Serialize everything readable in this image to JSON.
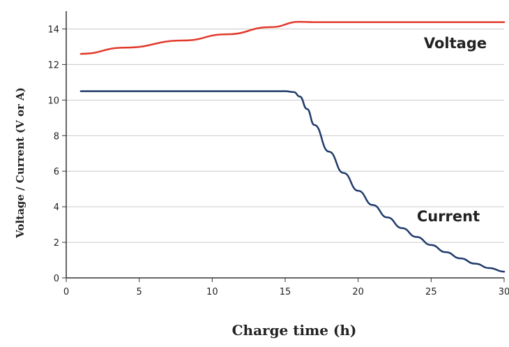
{
  "chart_data": {
    "type": "line",
    "xlabel": "Charge time (h)",
    "ylabel": "Voltage / Current (V or A)",
    "xlim": [
      0,
      30
    ],
    "ylim": [
      0,
      15
    ],
    "xticks": [
      0,
      5,
      10,
      15,
      20,
      25,
      30
    ],
    "yticks": [
      0,
      2,
      4,
      6,
      8,
      10,
      12,
      14
    ],
    "grid": "horizontal",
    "series": [
      {
        "name": "Voltage",
        "color": "#e23a2c",
        "x": [
          1,
          4,
          8,
          11,
          14,
          16,
          17,
          20,
          25,
          30
        ],
        "y": [
          12.6,
          12.95,
          13.35,
          13.7,
          14.1,
          14.4,
          14.38,
          14.38,
          14.38,
          14.38
        ]
      },
      {
        "name": "Current",
        "color": "#1f3a6a",
        "x": [
          1,
          5,
          10,
          15,
          15.6,
          16,
          16.5,
          17,
          18,
          19,
          20,
          21,
          22,
          23,
          24,
          25,
          26,
          27,
          28,
          29,
          30
        ],
        "y": [
          10.5,
          10.5,
          10.5,
          10.5,
          10.45,
          10.2,
          9.5,
          8.6,
          7.1,
          5.9,
          4.9,
          4.1,
          3.4,
          2.8,
          2.3,
          1.85,
          1.45,
          1.1,
          0.8,
          0.55,
          0.35
        ]
      }
    ]
  }
}
